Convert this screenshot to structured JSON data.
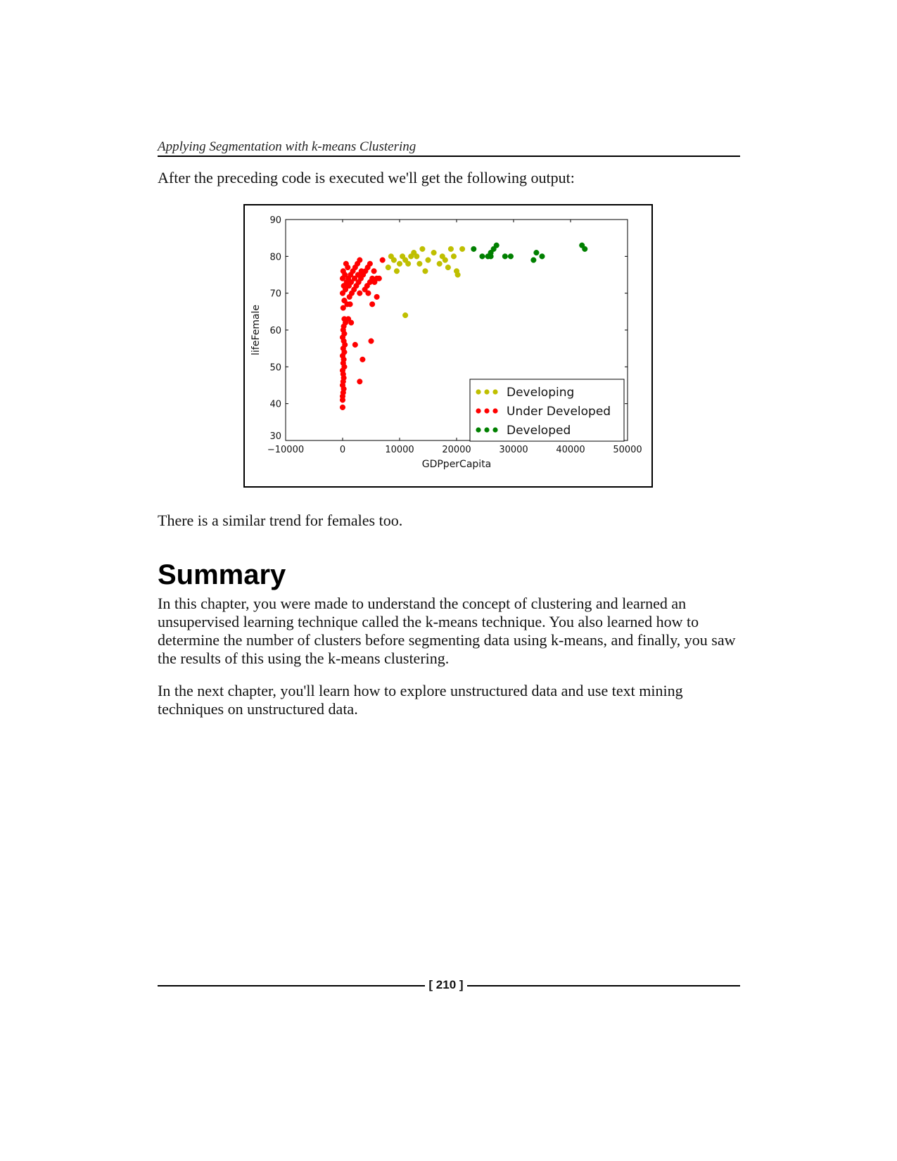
{
  "header": {
    "running_title": "Applying Segmentation with k-means Clustering"
  },
  "intro_text": "After the preceding code is executed we'll get the following output:",
  "after_figure_text": "There is a similar trend for females too.",
  "summary": {
    "title": "Summary",
    "paragraphs": [
      "In this chapter, you were made to understand the concept of clustering and learned an unsupervised learning technique called the k-means technique. You also learned how to determine the number of clusters before segmenting data using k-means, and finally, you saw the results of this using the k-means clustering.",
      "In the next chapter, you'll learn how to explore unstructured data and use text mining techniques on unstructured data."
    ]
  },
  "footer": {
    "page_number": "[ 210 ]"
  },
  "chart_data": {
    "type": "scatter",
    "title": "",
    "xlabel": "GDPperCapita",
    "ylabel": "lifeFemale",
    "xlim": [
      -10000,
      50000
    ],
    "ylim": [
      30,
      90
    ],
    "xticks": [
      -10000,
      0,
      10000,
      20000,
      30000,
      40000,
      50000
    ],
    "xtick_labels": [
      "−10000",
      "0",
      "10000",
      "20000",
      "30000",
      "40000",
      "50000"
    ],
    "yticks": [
      30,
      40,
      50,
      60,
      70,
      80,
      90
    ],
    "ytick_labels": [
      "30",
      "40",
      "50",
      "60",
      "70",
      "80",
      "90"
    ],
    "grid": false,
    "legend_position": "lower-right",
    "series": [
      {
        "name": "Developing",
        "color": "#bfbf00",
        "points": [
          [
            8000,
            77
          ],
          [
            8500,
            80
          ],
          [
            9000,
            79
          ],
          [
            9500,
            76
          ],
          [
            10000,
            78
          ],
          [
            10500,
            80
          ],
          [
            11000,
            79
          ],
          [
            11500,
            78
          ],
          [
            12000,
            80
          ],
          [
            12500,
            81
          ],
          [
            13000,
            80
          ],
          [
            13500,
            78
          ],
          [
            14000,
            82
          ],
          [
            14500,
            76
          ],
          [
            15000,
            79
          ],
          [
            16000,
            81
          ],
          [
            17000,
            78
          ],
          [
            17500,
            80
          ],
          [
            18000,
            79
          ],
          [
            18500,
            77
          ],
          [
            19000,
            82
          ],
          [
            19500,
            80
          ],
          [
            20000,
            76
          ],
          [
            20200,
            75
          ],
          [
            21000,
            82
          ],
          [
            11000,
            64
          ]
        ]
      },
      {
        "name": "Under Developed",
        "color": "#ff0000",
        "points": [
          [
            0,
            39
          ],
          [
            0,
            41
          ],
          [
            0,
            42
          ],
          [
            100,
            43
          ],
          [
            200,
            44
          ],
          [
            0,
            45
          ],
          [
            100,
            46
          ],
          [
            200,
            47
          ],
          [
            100,
            48
          ],
          [
            0,
            49
          ],
          [
            300,
            50
          ],
          [
            100,
            51
          ],
          [
            200,
            52
          ],
          [
            0,
            53
          ],
          [
            300,
            54
          ],
          [
            100,
            55
          ],
          [
            400,
            56
          ],
          [
            200,
            57
          ],
          [
            0,
            58
          ],
          [
            300,
            59
          ],
          [
            100,
            60
          ],
          [
            200,
            61
          ],
          [
            500,
            62
          ],
          [
            300,
            63
          ],
          [
            1000,
            63
          ],
          [
            1500,
            62
          ],
          [
            2200,
            56
          ],
          [
            3500,
            52
          ],
          [
            3000,
            46
          ],
          [
            5000,
            57
          ],
          [
            100,
            66
          ],
          [
            300,
            68
          ],
          [
            0,
            70
          ],
          [
            500,
            71
          ],
          [
            200,
            72
          ],
          [
            700,
            73
          ],
          [
            0,
            74
          ],
          [
            400,
            75
          ],
          [
            100,
            76
          ],
          [
            900,
            77
          ],
          [
            300,
            68
          ],
          [
            1200,
            69
          ],
          [
            1600,
            70
          ],
          [
            2000,
            71
          ],
          [
            2400,
            72
          ],
          [
            2800,
            73
          ],
          [
            3200,
            74
          ],
          [
            3600,
            75
          ],
          [
            4000,
            76
          ],
          [
            4400,
            77
          ],
          [
            1000,
            74
          ],
          [
            1400,
            75
          ],
          [
            1800,
            76
          ],
          [
            2200,
            77
          ],
          [
            2600,
            78
          ],
          [
            3000,
            79
          ],
          [
            600,
            78
          ],
          [
            1100,
            72
          ],
          [
            1500,
            73
          ],
          [
            2100,
            74
          ],
          [
            2700,
            75
          ],
          [
            3300,
            76
          ],
          [
            3900,
            71
          ],
          [
            4300,
            72
          ],
          [
            4800,
            73
          ],
          [
            5200,
            74
          ],
          [
            5600,
            73
          ],
          [
            6000,
            74
          ],
          [
            6400,
            74
          ],
          [
            7000,
            79
          ],
          [
            4800,
            78
          ],
          [
            5500,
            76
          ],
          [
            6000,
            69
          ],
          [
            5200,
            67
          ],
          [
            4500,
            70
          ],
          [
            3000,
            70
          ],
          [
            800,
            67
          ],
          [
            1300,
            67
          ]
        ]
      },
      {
        "name": "Developed",
        "color": "#008000",
        "points": [
          [
            23000,
            82
          ],
          [
            24500,
            80
          ],
          [
            25500,
            80
          ],
          [
            26000,
            81
          ],
          [
            26500,
            82
          ],
          [
            26000,
            80
          ],
          [
            27000,
            83
          ],
          [
            28500,
            80
          ],
          [
            29500,
            80
          ],
          [
            33500,
            79
          ],
          [
            34000,
            81
          ],
          [
            35000,
            80
          ],
          [
            42000,
            83
          ],
          [
            42500,
            82
          ]
        ]
      }
    ]
  }
}
